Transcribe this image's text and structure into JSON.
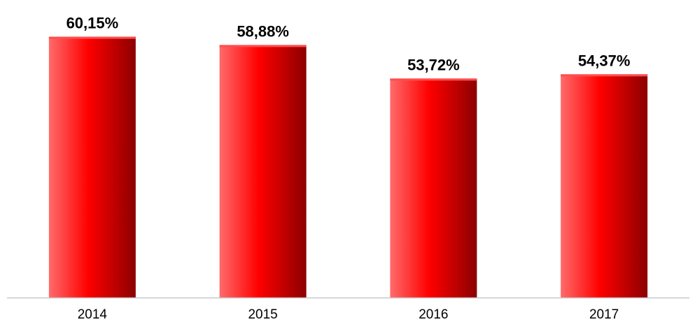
{
  "chart_data": {
    "type": "bar",
    "categories": [
      "2014",
      "2015",
      "2016",
      "2017"
    ],
    "values": [
      60.15,
      58.88,
      53.72,
      54.37
    ],
    "value_labels": [
      "60,15%",
      "58,88%",
      "53,72%",
      "54,37%"
    ],
    "title": "",
    "xlabel": "",
    "ylabel": "",
    "ylim": [
      20,
      62
    ],
    "grid": false,
    "legend": "none",
    "colors": {
      "bar_light": "#ff6b6b",
      "bar_main": "#ff0000",
      "bar_dark": "#8b0000",
      "bar_top": "#ff4d4d",
      "axis": "#c8c8c8"
    }
  }
}
